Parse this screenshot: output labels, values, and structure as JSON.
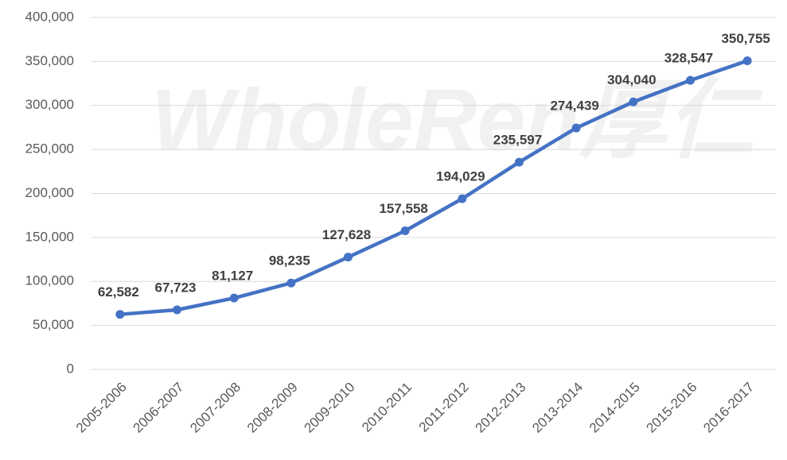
{
  "chart_data": {
    "type": "line",
    "watermark": "WholeRen厚仁",
    "categories": [
      "2005-2006",
      "2006-2007",
      "2007-2008",
      "2008-2009",
      "2009-2010",
      "2010-2011",
      "2011-2012",
      "2012-2013",
      "2013-2014",
      "2014-2015",
      "2015-2016",
      "2016-2017"
    ],
    "series": [
      {
        "color": "#4472c4",
        "values": [
          62582,
          67723,
          81127,
          98235,
          127628,
          157558,
          194029,
          235597,
          274439,
          304040,
          328547,
          350755
        ],
        "value_labels": [
          "62,582",
          "67,723",
          "81,127",
          "98,235",
          "127,628",
          "157,558",
          "194,029",
          "235,597",
          "274,439",
          "304,040",
          "328,547",
          "350,755"
        ]
      }
    ],
    "ylim": [
      0,
      400000
    ],
    "yticks": [
      0,
      {
        "value": 50000,
        "label": "50,000"
      },
      {
        "value": 100000,
        "label": "100,000"
      },
      {
        "value": 150000,
        "label": "150,000"
      },
      {
        "value": 200000,
        "label": "200,000"
      },
      {
        "value": 250000,
        "label": "250,000"
      },
      {
        "value": 300000,
        "label": "300,000"
      },
      {
        "value": 350000,
        "label": "350,000"
      },
      {
        "value": 400000,
        "label": "400,000"
      }
    ],
    "grid": true
  }
}
